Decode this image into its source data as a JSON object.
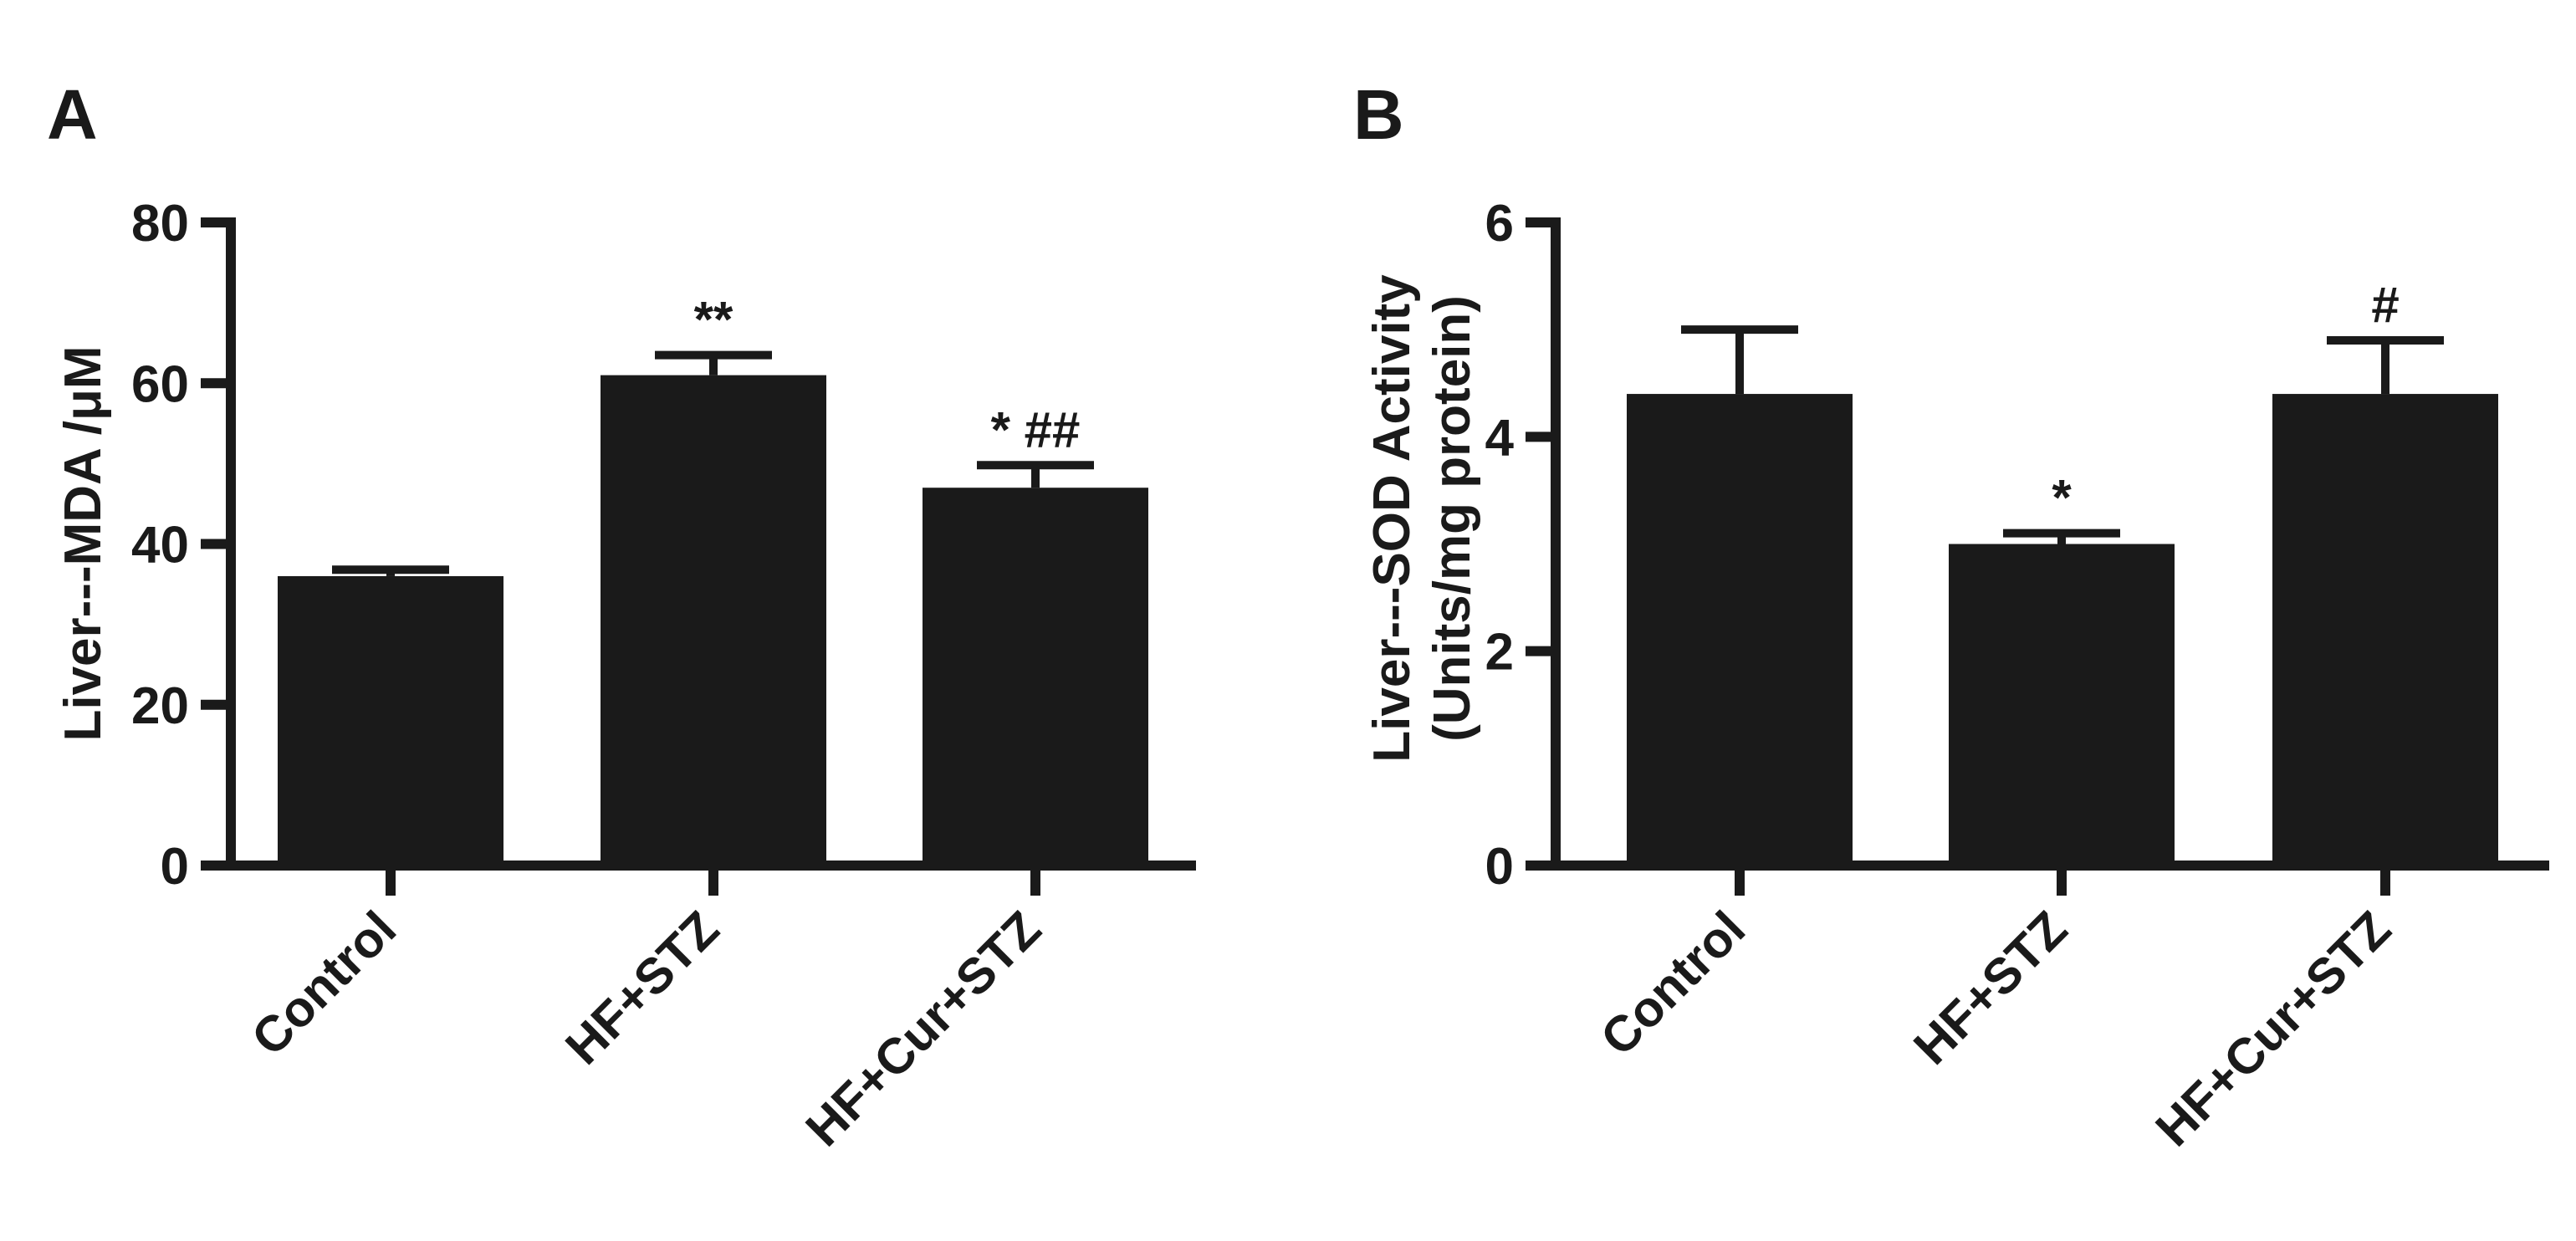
{
  "chart_data": [
    {
      "panel_label": "A",
      "type": "bar",
      "ylabel": "Liver---MDA /μM",
      "ylabel_lines": [
        "Liver---MDA /μM"
      ],
      "categories": [
        "Control",
        "HF+STZ",
        "HF+Cur+STZ"
      ],
      "values": [
        36,
        61,
        47
      ],
      "errors": [
        0.8,
        2.5,
        2.8
      ],
      "annotations": [
        "",
        "**",
        "* ##"
      ],
      "ylim": [
        0,
        80
      ],
      "yticks": [
        0,
        20,
        40,
        60,
        80
      ],
      "ytick_labels": [
        "0",
        "20",
        "40",
        "60",
        "80"
      ],
      "color": "#1a1a1a",
      "grid": false,
      "legend": "none"
    },
    {
      "panel_label": "B",
      "type": "bar",
      "ylabel": "Liver---SOD Activity (Units/mg protein)",
      "ylabel_lines": [
        "Liver---SOD Activity",
        "(Units/mg protein)"
      ],
      "categories": [
        "Control",
        "HF+STZ",
        "HF+Cur+STZ"
      ],
      "values": [
        4.4,
        3.0,
        4.4
      ],
      "errors": [
        0.6,
        0.1,
        0.5
      ],
      "annotations": [
        "",
        "*",
        "#"
      ],
      "ylim": [
        0,
        6
      ],
      "yticks": [
        0,
        2,
        4,
        6
      ],
      "ytick_labels": [
        "0",
        "2",
        "4",
        "6"
      ],
      "color": "#1a1a1a",
      "grid": false,
      "legend": "none"
    }
  ]
}
